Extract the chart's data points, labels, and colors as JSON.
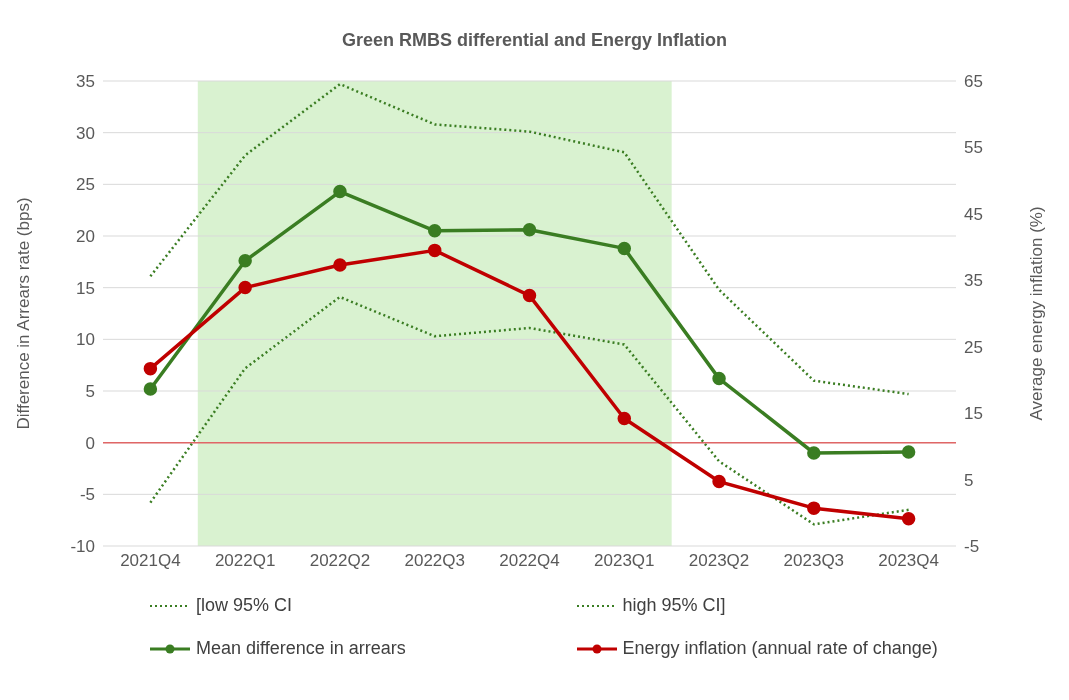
{
  "chart_data": {
    "type": "line",
    "title": "Green RMBS differential and Energy Inflation",
    "categories": [
      "2021Q4",
      "2022Q1",
      "2022Q2",
      "2022Q3",
      "2022Q4",
      "2023Q1",
      "2023Q2",
      "2023Q3",
      "2023Q4"
    ],
    "ylabel": "Difference in Arrears rate (bps)",
    "y2label": "Average energy inflation (%)",
    "ylim": [
      -10,
      35
    ],
    "yticks": [
      -10,
      -5,
      0,
      5,
      10,
      15,
      20,
      25,
      30,
      35
    ],
    "y2lim": [
      -5,
      65
    ],
    "y2ticks": [
      -5,
      5,
      15,
      25,
      35,
      45,
      55,
      65
    ],
    "grid": "y",
    "legend": "bottom",
    "series": [
      {
        "name": "[low 95% CI",
        "color": "#3a7d22",
        "line_style": "dotted",
        "marker": "none",
        "values": [
          -5.8,
          7.2,
          14.1,
          10.3,
          11.1,
          9.5,
          -1.8,
          -7.9,
          -6.5
        ]
      },
      {
        "name": "high 95% CI]",
        "color": "#3a7d22",
        "line_style": "dotted",
        "marker": "none",
        "values": [
          16.1,
          27.8,
          34.7,
          30.8,
          30.1,
          28.1,
          14.8,
          6.0,
          4.7
        ]
      },
      {
        "name": "Mean difference in arrears",
        "color": "#3a7d22",
        "line_style": "solid",
        "marker": "circle",
        "values": [
          5.2,
          17.6,
          24.3,
          20.5,
          20.6,
          18.8,
          6.2,
          -1.0,
          -0.9
        ]
      },
      {
        "name": "Energy inflation (annual rate of change)",
        "color": "#c00000",
        "line_style": "solid",
        "marker": "circle",
        "axis": "y2",
        "values": [
          21.7,
          33.9,
          37.3,
          39.5,
          32.7,
          14.2,
          4.7,
          0.7,
          -0.9
        ]
      }
    ],
    "ref_lines": [
      {
        "axis": "y",
        "value": 0,
        "color": "#e06666"
      }
    ],
    "bands": [
      {
        "axis": "x",
        "from": "2022Q1",
        "to": "2023Q1",
        "color": "#d9f2d0"
      }
    ]
  }
}
